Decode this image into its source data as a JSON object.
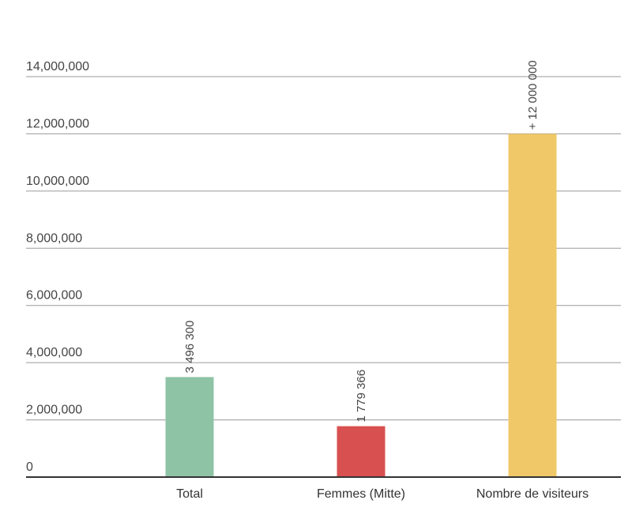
{
  "chart_data": {
    "type": "bar",
    "categories": [
      "Total",
      "Femmes (Mitte)",
      "Nombre de visiteurs"
    ],
    "values": [
      3496300,
      1779366,
      12000000
    ],
    "data_labels": [
      "3 496 300",
      "1 779 366",
      "+ 12 000 000"
    ],
    "colors": [
      "#8ec3a6",
      "#d95050",
      "#f0c868"
    ],
    "ylim": [
      0,
      14000000
    ],
    "yticks": [
      0,
      2000000,
      4000000,
      6000000,
      8000000,
      10000000,
      12000000,
      14000000
    ],
    "ytick_labels": [
      "0",
      "2,000,000",
      "4,000,000",
      "6,000,000",
      "8,000,000",
      "10,000,000",
      "12,000,000",
      "14,000,000"
    ],
    "grid": true,
    "title": "",
    "xlabel": "",
    "ylabel": ""
  }
}
